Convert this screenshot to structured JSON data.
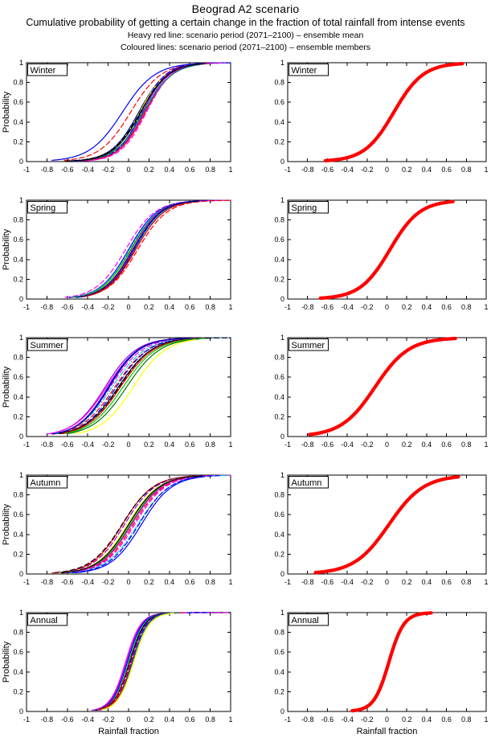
{
  "title": "Beograd A2 scenario",
  "subtitle": "Cumulative probability of getting a certain change in the fraction of total rainfall from intense events",
  "legend": {
    "heavy_red_line": "Heavy red line: scenario period (2071–2100) – ensemble mean",
    "coloured_lines": "Coloured lines: scenario period (2071–2100) – ensemble members"
  },
  "colors": {
    "mean_line": "#ff0000",
    "axis": "#000000",
    "background": "#ffffff"
  },
  "axes": {
    "xlabel": "Rainfall fraction",
    "ylabel": "Probability",
    "xlim": [
      -1,
      1
    ],
    "ylim": [
      0,
      1
    ],
    "xtick_values": [
      -1,
      -0.8,
      -0.6,
      -0.4,
      -0.2,
      0,
      0.2,
      0.4,
      0.6,
      0.8,
      1
    ],
    "xtick_labels": [
      "-1",
      "-0.8",
      "-0.6",
      "-0.4",
      "-0.2",
      "0",
      "0.2",
      "0.4",
      "0.6",
      "0.8",
      "1"
    ],
    "ytick_values": [
      0,
      0.2,
      0.4,
      0.6,
      0.8,
      1
    ],
    "ytick_labels": [
      "0",
      "0.2",
      "0.4",
      "0.6",
      "0.8",
      "1"
    ]
  },
  "chart_data": [
    {
      "season": "Winter",
      "panels": [
        {
          "panel": "ensemble-members",
          "type": "line",
          "curve_model": "logistic-cdf",
          "series": [
            {
              "color": "#0000ff",
              "dash": "solid",
              "mu": -0.06,
              "s": 0.16,
              "x0": -0.75,
              "x1": 0.7
            },
            {
              "color": "#ff0000",
              "dash": "dashed",
              "mu": 0.02,
              "s": 0.15,
              "x0": -0.63,
              "x1": 0.78
            },
            {
              "color": "#000099",
              "dash": "solid",
              "mu": 0.1,
              "s": 0.135,
              "x0": -0.6,
              "x1": 1.0
            },
            {
              "color": "#ffff00",
              "dash": "solid",
              "mu": 0.11,
              "s": 0.13,
              "x0": -0.53,
              "x1": 0.72
            },
            {
              "color": "#00cc00",
              "dash": "solid",
              "mu": 0.135,
              "s": 0.13,
              "x0": -0.5,
              "x1": 0.8
            },
            {
              "color": "#00cccc",
              "dash": "dashdot",
              "mu": 0.145,
              "s": 0.13,
              "x0": -0.5,
              "x1": 1.0
            },
            {
              "color": "#ff00ff",
              "dash": "solid",
              "mu": 0.155,
              "s": 0.125,
              "x0": -0.48,
              "x1": 0.85
            },
            {
              "color": "#9900cc",
              "dash": "solid",
              "mu": 0.14,
              "s": 0.12,
              "x0": -0.5,
              "x1": 0.75
            },
            {
              "color": "#0000ff",
              "dash": "dashed",
              "mu": 0.125,
              "s": 0.12,
              "x0": -0.55,
              "x1": 1.0
            },
            {
              "color": "#ff0000",
              "dash": "solid",
              "mu": 0.165,
              "s": 0.13,
              "x0": -0.45,
              "x1": 0.8
            },
            {
              "color": "#000000",
              "dash": "dashed",
              "mu": 0.115,
              "s": 0.14,
              "x0": -0.6,
              "x1": 0.9
            },
            {
              "color": "#ff00ff",
              "dash": "dashed",
              "mu": 0.175,
              "s": 0.125,
              "x0": -0.42,
              "x1": 0.95
            },
            {
              "color": "#007777",
              "dash": "solid",
              "mu": 0.15,
              "s": 0.14,
              "x0": -0.5,
              "x1": 0.7
            },
            {
              "color": "#000000",
              "dash": "solid",
              "mu": 0.12,
              "s": 0.135,
              "x0": -0.62,
              "x1": 0.75
            }
          ]
        },
        {
          "panel": "ensemble-mean",
          "type": "line",
          "curve_model": "logistic-cdf",
          "series": [
            {
              "color": "#ff0000",
              "dash": "solid",
              "width": 4.3,
              "mu": 0.07,
              "s": 0.148,
              "x0": -0.62,
              "x1": 0.76
            }
          ]
        }
      ]
    },
    {
      "season": "Spring",
      "panels": [
        {
          "panel": "ensemble-members",
          "type": "line",
          "curve_model": "logistic-cdf",
          "series": [
            {
              "color": "#ff00ff",
              "dash": "dashed",
              "mu": -0.03,
              "s": 0.145,
              "x0": -0.62,
              "x1": 0.6
            },
            {
              "color": "#0000ff",
              "dash": "solid",
              "mu": 0.0,
              "s": 0.14,
              "x0": -0.58,
              "x1": 0.65
            },
            {
              "color": "#00cccc",
              "dash": "dashdot",
              "mu": 0.01,
              "s": 0.14,
              "x0": -0.55,
              "x1": 1.0
            },
            {
              "color": "#00cc00",
              "dash": "solid",
              "mu": 0.02,
              "s": 0.14,
              "x0": -0.55,
              "x1": 0.62
            },
            {
              "color": "#9900cc",
              "dash": "solid",
              "mu": 0.03,
              "s": 0.135,
              "x0": -0.52,
              "x1": 0.7
            },
            {
              "color": "#ffff00",
              "dash": "solid",
              "mu": 0.035,
              "s": 0.14,
              "x0": -0.5,
              "x1": 0.66
            },
            {
              "color": "#000000",
              "dash": "solid",
              "mu": 0.045,
              "s": 0.135,
              "x0": -0.5,
              "x1": 0.75
            },
            {
              "color": "#ff00ff",
              "dash": "solid",
              "mu": 0.05,
              "s": 0.14,
              "x0": -0.52,
              "x1": 1.0
            },
            {
              "color": "#0000ff",
              "dash": "dashed",
              "mu": 0.055,
              "s": 0.135,
              "x0": -0.5,
              "x1": 0.85
            },
            {
              "color": "#000000",
              "dash": "dashed",
              "mu": 0.06,
              "s": 0.14,
              "x0": -0.48,
              "x1": 0.7
            },
            {
              "color": "#00cccc",
              "dash": "solid",
              "mu": 0.065,
              "s": 0.135,
              "x0": -0.5,
              "x1": 0.62
            },
            {
              "color": "#ff0000",
              "dash": "dashed",
              "mu": 0.09,
              "s": 0.145,
              "x0": -0.45,
              "x1": 1.0
            },
            {
              "color": "#ff0000",
              "dash": "solid",
              "mu": 0.07,
              "s": 0.14,
              "x0": -0.46,
              "x1": 0.6
            },
            {
              "color": "#000099",
              "dash": "solid",
              "mu": 0.04,
              "s": 0.14,
              "x0": -0.52,
              "x1": 0.68
            }
          ]
        },
        {
          "panel": "ensemble-mean",
          "type": "line",
          "curve_model": "logistic-cdf",
          "series": [
            {
              "color": "#ff0000",
              "dash": "solid",
              "width": 4.3,
              "mu": 0.03,
              "s": 0.15,
              "x0": -0.67,
              "x1": 0.67
            }
          ]
        }
      ]
    },
    {
      "season": "Summer",
      "panels": [
        {
          "panel": "ensemble-members",
          "type": "line",
          "curve_model": "logistic-cdf",
          "series": [
            {
              "color": "#9900cc",
              "dash": "solid",
              "mu": -0.23,
              "s": 0.155,
              "x0": -0.8,
              "x1": 0.55
            },
            {
              "color": "#ff00ff",
              "dash": "solid",
              "mu": -0.215,
              "s": 0.16,
              "x0": -0.78,
              "x1": 0.6
            },
            {
              "color": "#0000ff",
              "dash": "solid",
              "mu": -0.2,
              "s": 0.15,
              "x0": -0.75,
              "x1": 0.65
            },
            {
              "color": "#ff00ff",
              "dash": "dashed",
              "mu": -0.18,
              "s": 0.16,
              "x0": -0.72,
              "x1": 1.0
            },
            {
              "color": "#00cccc",
              "dash": "dashdot",
              "mu": -0.16,
              "s": 0.165,
              "x0": -0.72,
              "x1": 1.0
            },
            {
              "color": "#ff0000",
              "dash": "dashed",
              "mu": -0.135,
              "s": 0.165,
              "x0": -0.7,
              "x1": 0.7
            },
            {
              "color": "#0000ff",
              "dash": "dashed",
              "mu": -0.12,
              "s": 0.16,
              "x0": -0.68,
              "x1": 0.75
            },
            {
              "color": "#000000",
              "dash": "solid",
              "mu": -0.1,
              "s": 0.165,
              "x0": -0.68,
              "x1": 0.8
            },
            {
              "color": "#000000",
              "dash": "dashed",
              "mu": -0.09,
              "s": 0.16,
              "x0": -0.65,
              "x1": 1.0
            },
            {
              "color": "#ff0000",
              "dash": "solid",
              "mu": -0.08,
              "s": 0.165,
              "x0": -0.65,
              "x1": 0.7
            },
            {
              "color": "#00cc00",
              "dash": "solid",
              "mu": -0.055,
              "s": 0.165,
              "x0": -0.62,
              "x1": 0.75
            },
            {
              "color": "#007700",
              "dash": "solid",
              "mu": -0.02,
              "s": 0.165,
              "x0": -0.6,
              "x1": 0.7
            },
            {
              "color": "#ffff00",
              "dash": "solid",
              "mu": 0.045,
              "s": 0.16,
              "x0": -0.52,
              "x1": 0.65
            },
            {
              "color": "#000099",
              "dash": "solid",
              "mu": -0.19,
              "s": 0.15,
              "x0": -0.74,
              "x1": 0.6
            }
          ]
        },
        {
          "panel": "ensemble-mean",
          "type": "line",
          "curve_model": "logistic-cdf",
          "series": [
            {
              "color": "#ff0000",
              "dash": "solid",
              "width": 4.3,
              "mu": -0.12,
              "s": 0.17,
              "x0": -0.78,
              "x1": 0.7
            }
          ]
        }
      ]
    },
    {
      "season": "Autumn",
      "panels": [
        {
          "panel": "ensemble-members",
          "type": "line",
          "curve_model": "logistic-cdf",
          "series": [
            {
              "color": "#ff0000",
              "dash": "solid",
              "mu": -0.06,
              "s": 0.15,
              "x0": -0.75,
              "x1": 0.7
            },
            {
              "color": "#000000",
              "dash": "dashed",
              "mu": -0.065,
              "s": 0.155,
              "x0": -0.72,
              "x1": 1.0
            },
            {
              "color": "#9900cc",
              "dash": "dashed",
              "mu": -0.04,
              "s": 0.15,
              "x0": -0.7,
              "x1": 0.75
            },
            {
              "color": "#ffff00",
              "dash": "solid",
              "mu": -0.01,
              "s": 0.15,
              "x0": -0.68,
              "x1": 0.7
            },
            {
              "color": "#00cc00",
              "dash": "solid",
              "mu": 0.005,
              "s": 0.15,
              "x0": -0.65,
              "x1": 0.72
            },
            {
              "color": "#007700",
              "dash": "solid",
              "mu": 0.02,
              "s": 0.15,
              "x0": -0.65,
              "x1": 0.75
            },
            {
              "color": "#ff00ff",
              "dash": "solid",
              "mu": 0.03,
              "s": 0.15,
              "x0": -0.62,
              "x1": 1.0
            },
            {
              "color": "#ff0000",
              "dash": "dashed",
              "mu": 0.045,
              "s": 0.15,
              "x0": -0.6,
              "x1": 0.8
            },
            {
              "color": "#ff00ff",
              "dash": "dashed",
              "mu": 0.06,
              "s": 0.15,
              "x0": -0.6,
              "x1": 0.85
            },
            {
              "color": "#00cccc",
              "dash": "dashdot",
              "mu": 0.09,
              "s": 0.155,
              "x0": -0.58,
              "x1": 1.0
            },
            {
              "color": "#0000ff",
              "dash": "dashed",
              "mu": 0.1,
              "s": 0.15,
              "x0": -0.55,
              "x1": 0.9
            },
            {
              "color": "#0000ff",
              "dash": "solid",
              "mu": 0.125,
              "s": 0.15,
              "x0": -0.52,
              "x1": 0.75
            },
            {
              "color": "#000000",
              "dash": "solid",
              "mu": 0.0,
              "s": 0.15,
              "x0": -0.66,
              "x1": 0.72
            }
          ]
        },
        {
          "panel": "ensemble-mean",
          "type": "line",
          "curve_model": "logistic-cdf",
          "series": [
            {
              "color": "#ff0000",
              "dash": "solid",
              "width": 4.3,
              "mu": 0.02,
              "s": 0.175,
              "x0": -0.72,
              "x1": 0.72
            }
          ]
        }
      ]
    },
    {
      "season": "Annual",
      "panels": [
        {
          "panel": "ensemble-members",
          "type": "line",
          "curve_model": "logistic-cdf",
          "series": [
            {
              "color": "#ff00ff",
              "dash": "solid",
              "mu": -0.03,
              "s": 0.075,
              "x0": -0.36,
              "x1": 0.4
            },
            {
              "color": "#9900cc",
              "dash": "solid",
              "mu": -0.02,
              "s": 0.075,
              "x0": -0.35,
              "x1": 0.45
            },
            {
              "color": "#0000ff",
              "dash": "solid",
              "mu": -0.01,
              "s": 0.075,
              "x0": -0.33,
              "x1": 0.5
            },
            {
              "color": "#00cccc",
              "dash": "dashdot",
              "mu": 0.0,
              "s": 0.075,
              "x0": -0.32,
              "x1": 1.0
            },
            {
              "color": "#00cc00",
              "dash": "solid",
              "mu": 0.005,
              "s": 0.075,
              "x0": -0.32,
              "x1": 0.6
            },
            {
              "color": "#000000",
              "dash": "solid",
              "mu": 0.01,
              "s": 0.075,
              "x0": -0.32,
              "x1": 1.0
            },
            {
              "color": "#ff0000",
              "dash": "dashed",
              "mu": 0.015,
              "s": 0.08,
              "x0": -0.3,
              "x1": 0.7
            },
            {
              "color": "#000000",
              "dash": "dashed",
              "mu": 0.02,
              "s": 0.075,
              "x0": -0.3,
              "x1": 0.9
            },
            {
              "color": "#ff00ff",
              "dash": "dashed",
              "mu": 0.025,
              "s": 0.075,
              "x0": -0.3,
              "x1": 1.0
            },
            {
              "color": "#0000ff",
              "dash": "dashed",
              "mu": 0.03,
              "s": 0.075,
              "x0": -0.28,
              "x1": 0.8
            },
            {
              "color": "#ff0000",
              "dash": "solid",
              "mu": 0.035,
              "s": 0.078,
              "x0": -0.28,
              "x1": 0.55
            },
            {
              "color": "#007777",
              "dash": "solid",
              "mu": 0.04,
              "s": 0.075,
              "x0": -0.27,
              "x1": 0.5
            },
            {
              "color": "#ffff00",
              "dash": "solid",
              "mu": 0.05,
              "s": 0.078,
              "x0": -0.26,
              "x1": 0.45
            }
          ]
        },
        {
          "panel": "ensemble-mean",
          "type": "line",
          "curve_model": "logistic-cdf",
          "series": [
            {
              "color": "#ff0000",
              "dash": "solid",
              "width": 4.3,
              "mu": 0.02,
              "s": 0.075,
              "x0": -0.35,
              "x1": 0.45
            }
          ]
        }
      ]
    }
  ]
}
